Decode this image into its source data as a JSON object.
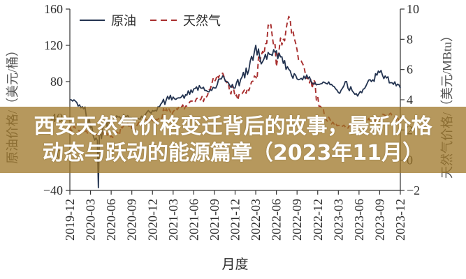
{
  "banner": {
    "line1": "西安天然气价格变迁背后的故事，最新价格",
    "line2": "动态与跃动的能源篇章（2023年11月）"
  },
  "colors": {
    "background": "#ffffff",
    "oil_line": "#233350",
    "gas_line": "#a82e2e",
    "axis": "#333333",
    "tick_text": "#2b2b2b",
    "axis_label_text": "#555555",
    "banner_bg": "rgba(157,118,39,0.75)",
    "banner_text": "#ffffff"
  },
  "chart_data": {
    "type": "line",
    "x_label": "月度",
    "legend_position": "top-left-inside",
    "grid": false,
    "x_tick_labels": [
      "2019-12",
      "2020-03",
      "2020-06",
      "2020-09",
      "2020-12",
      "2021-03",
      "2021-06",
      "2021-09",
      "2021-12",
      "2022-03",
      "2022-06",
      "2022-09",
      "2022-12",
      "2023-03",
      "2023-06",
      "2023-09",
      "2023-12"
    ],
    "x_months": [
      "2019-12",
      "2020-01",
      "2020-02",
      "2020-03",
      "2020-04",
      "2020-05",
      "2020-06",
      "2020-07",
      "2020-08",
      "2020-09",
      "2020-10",
      "2020-11",
      "2020-12",
      "2021-01",
      "2021-02",
      "2021-03",
      "2021-04",
      "2021-05",
      "2021-06",
      "2021-07",
      "2021-08",
      "2021-09",
      "2021-10",
      "2021-11",
      "2021-12",
      "2022-01",
      "2022-02",
      "2022-03",
      "2022-04",
      "2022-05",
      "2022-06",
      "2022-07",
      "2022-08",
      "2022-09",
      "2022-10",
      "2022-11",
      "2022-12",
      "2023-01",
      "2023-02",
      "2023-03",
      "2023-04",
      "2023-05",
      "2023-06",
      "2023-07",
      "2023-08",
      "2023-09",
      "2023-10",
      "2023-11",
      "2023-12"
    ],
    "left_axis": {
      "label": "原油价格/（美元/桶）",
      "min": -40,
      "max": 160,
      "ticks": [
        160,
        120,
        80,
        40,
        0,
        -40
      ]
    },
    "right_axis": {
      "label": "天然气价格/（美元/MBtu）",
      "min": -2,
      "max": 10,
      "ticks": [
        10,
        8,
        6,
        4,
        2,
        0,
        -2
      ]
    },
    "series": [
      {
        "name": "原油",
        "axis": "left",
        "style": "solid",
        "color": "#233350",
        "values": [
          60,
          57,
          50,
          29,
          15,
          33,
          39,
          41,
          42,
          40,
          39,
          44,
          48,
          52,
          60,
          63,
          62,
          65,
          72,
          73,
          69,
          73,
          83,
          79,
          73,
          85,
          93,
          120,
          102,
          110,
          114,
          100,
          92,
          83,
          86,
          81,
          77,
          79,
          77,
          68,
          80,
          70,
          67,
          75,
          82,
          90,
          84,
          77,
          73
        ]
      },
      {
        "name": "天然气",
        "axis": "right",
        "style": "dashed",
        "color": "#a82e2e",
        "values": [
          2.2,
          2.0,
          1.9,
          1.8,
          1.7,
          1.7,
          1.6,
          1.8,
          2.3,
          2.1,
          2.5,
          2.7,
          2.6,
          2.8,
          3.4,
          3.2,
          3.4,
          3.6,
          3.8,
          4.0,
          4.3,
          5.2,
          5.7,
          5.2,
          4.2,
          4.4,
          4.6,
          5.5,
          7.2,
          8.8,
          6.2,
          8.0,
          9.3,
          7.3,
          6.2,
          5.4,
          4.2,
          2.9,
          2.4,
          2.3,
          2.2,
          2.2,
          2.3,
          2.6,
          2.6,
          2.7,
          3.0,
          2.9,
          2.6
        ]
      }
    ],
    "annotations": [
      {
        "series": "原油",
        "month": "2020-04",
        "month_index": 4,
        "spike_min_value": -37
      }
    ]
  }
}
